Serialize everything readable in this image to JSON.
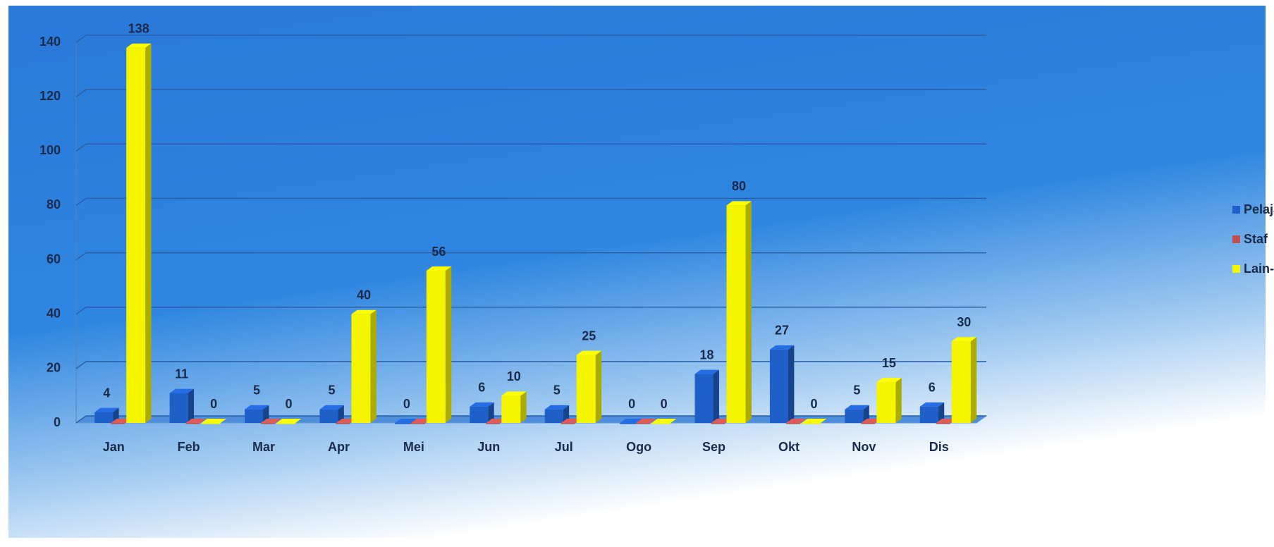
{
  "chart_data": {
    "type": "bar3d",
    "categories": [
      "Jan",
      "Feb",
      "Mar",
      "Apr",
      "Mei",
      "Jun",
      "Jul",
      "Ogo",
      "Sep",
      "Okt",
      "Nov",
      "Dis"
    ],
    "series": [
      {
        "name": "Pelajar",
        "color": "#1f5fc8",
        "data_labels": true,
        "values": [
          4,
          11,
          5,
          5,
          0,
          6,
          5,
          0,
          18,
          27,
          5,
          6
        ]
      },
      {
        "name": "Staf",
        "color": "#c0504d",
        "data_labels": false,
        "values": [
          0,
          0,
          0,
          0,
          0,
          0,
          0,
          0,
          0,
          0,
          0,
          0
        ]
      },
      {
        "name": "Lain-lain",
        "color": "#f5f500",
        "data_labels": true,
        "values": [
          138,
          0,
          0,
          40,
          56,
          10,
          25,
          0,
          80,
          0,
          15,
          30
        ]
      }
    ],
    "ylim": [
      0,
      140
    ],
    "yticks": [
      0,
      20,
      40,
      60,
      80,
      100,
      120,
      140
    ],
    "grid": true,
    "legend": "right"
  }
}
